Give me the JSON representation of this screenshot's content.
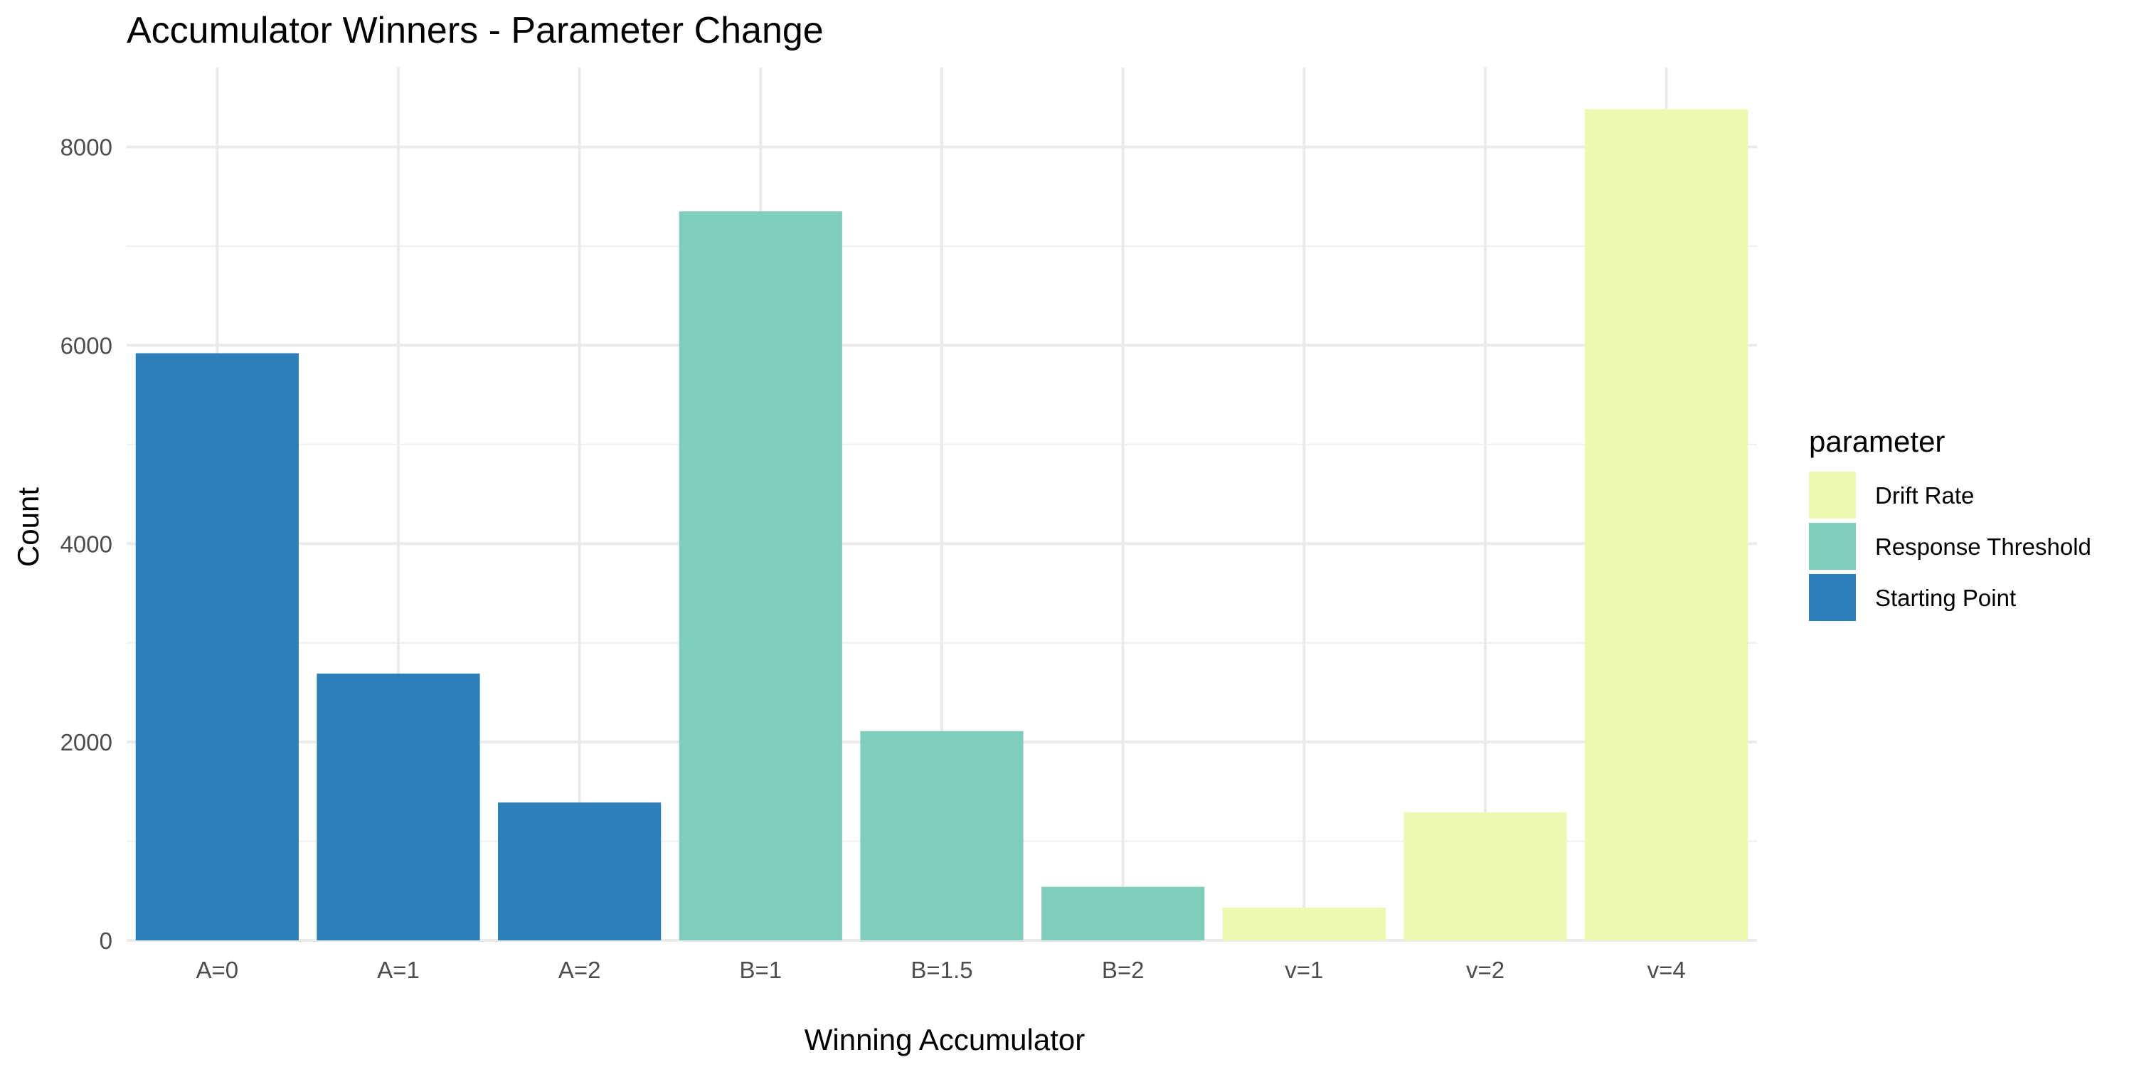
{
  "chart_data": {
    "type": "bar",
    "title": "Accumulator Winners - Parameter Change",
    "xlabel": "Winning Accumulator",
    "ylabel": "Count",
    "categories": [
      "A=0",
      "A=1",
      "A=2",
      "B=1",
      "B=1.5",
      "B=2",
      "v=1",
      "v=2",
      "v=4"
    ],
    "values": [
      5920,
      2690,
      1390,
      7350,
      2110,
      540,
      330,
      1290,
      8380
    ],
    "groups": [
      "Starting Point",
      "Starting Point",
      "Starting Point",
      "Response Threshold",
      "Response Threshold",
      "Response Threshold",
      "Drift Rate",
      "Drift Rate",
      "Drift Rate"
    ],
    "ylim": [
      0,
      8800
    ],
    "yticks": [
      0,
      2000,
      4000,
      6000,
      8000
    ],
    "grid": true,
    "legend": {
      "title": "parameter",
      "placement": "right",
      "entries": [
        {
          "name": "Drift Rate",
          "color": "#edf8b1"
        },
        {
          "name": "Response Threshold",
          "color": "#7fcdbb"
        },
        {
          "name": "Starting Point",
          "color": "#2c7fb8"
        }
      ]
    }
  }
}
